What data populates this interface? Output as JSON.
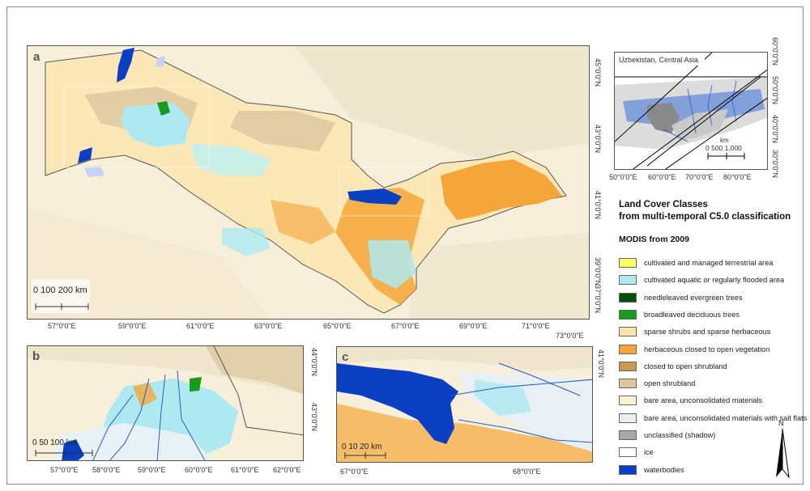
{
  "panels": {
    "a": {
      "letter": "a",
      "scale_text": "0   100  200  km",
      "x_ticks": [
        "57°0'0\"E",
        "59°0'0\"E",
        "61°0'0\"E",
        "63°0'0\"E",
        "65°0'0\"E",
        "67°0'0\"E",
        "69°0'0\"E",
        "71°0'0\"E",
        "73°0'0\"E"
      ],
      "y_ticks": [
        "45°0'0\"N",
        "43°0'0\"N",
        "41°0'0\"N",
        "39°0'0\"N",
        "37°0'0\"N"
      ]
    },
    "b": {
      "letter": "b",
      "scale_text": "0    50  100  km",
      "x_ticks": [
        "57°0'0\"E",
        "58°0'0\"E",
        "59°0'0\"E",
        "60°0'0\"E",
        "61°0'0\"E",
        "62°0'0\"E"
      ],
      "y_ticks": [
        "44°0'0\"N",
        "43°0'0\"N"
      ]
    },
    "c": {
      "letter": "c",
      "scale_text": "0  10  20  km",
      "x_ticks": [
        "67°0'0\"E",
        "68°0'0\"E"
      ],
      "y_ticks": [
        "41°0'0\"N"
      ]
    },
    "inset": {
      "title": "Uzbekistan, Central Asia",
      "scale_text": "0   500 1,000",
      "scale_unit": "km",
      "x_ticks": [
        "50°0'0\"E",
        "60°0'0\"E",
        "70°0'0\"E",
        "80°0'0\"E"
      ],
      "y_ticks": [
        "60°0'0\"N",
        "50°0'0\"N",
        "40°0'0\"N",
        "30°0'0\"N"
      ]
    }
  },
  "legend": {
    "title_line1": "Land Cover Classes",
    "title_line2": "from multi-temporal C5.0 classification",
    "subtitle": "MODIS from 2009",
    "items": [
      {
        "label": "cultivated and managed terrestrial area",
        "color": "#ffff66"
      },
      {
        "label": "cultivated aquatic or regularly flooded area",
        "color": "#aee8f0"
      },
      {
        "label": "needleleaved evergreen trees",
        "color": "#0b4d0b"
      },
      {
        "label": "broadleaved deciduous trees",
        "color": "#1a9a1a"
      },
      {
        "label": "sparse shrubs and sparse herbaceous",
        "color": "#fbe5ad"
      },
      {
        "label": "herbaceous closed to open vegetation",
        "color": "#f4a63a"
      },
      {
        "label": "closed to open shrubland",
        "color": "#c69a52"
      },
      {
        "label": "open shrubland",
        "color": "#dcc5a0"
      },
      {
        "label": "bare area, unconsolidated materials",
        "color": "#fbf0d6"
      },
      {
        "label": "bare area, unconsolidated materials with salt flats",
        "color": "#ececec"
      },
      {
        "label": "unclassified (shadow)",
        "color": "#a9a9a9"
      },
      {
        "label": "ice",
        "color": "#ffffff"
      },
      {
        "label": "waterbodies",
        "color": "#0a3fc2"
      }
    ]
  },
  "north_arrow": {
    "label": "N"
  }
}
